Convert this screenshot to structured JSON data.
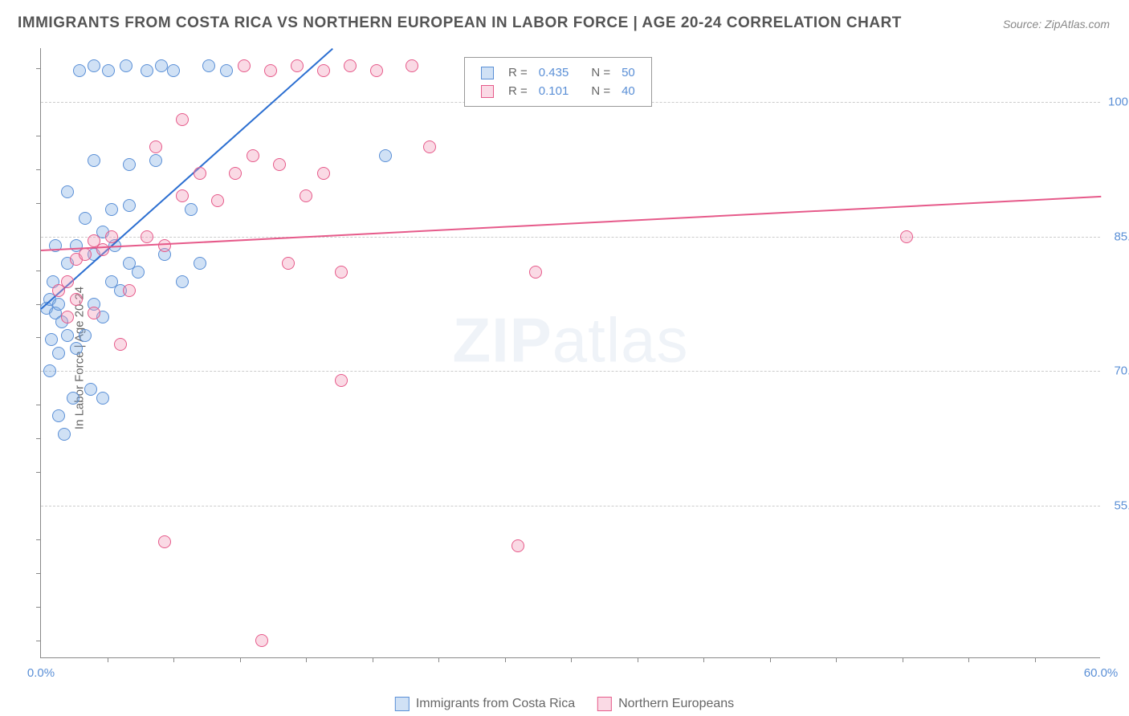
{
  "title": "IMMIGRANTS FROM COSTA RICA VS NORTHERN EUROPEAN IN LABOR FORCE | AGE 20-24 CORRELATION CHART",
  "source": "Source: ZipAtlas.com",
  "ylabel": "In Labor Force | Age 20-24",
  "watermark_a": "ZIP",
  "watermark_b": "atlas",
  "chart": {
    "type": "scatter",
    "xlim": [
      0,
      60
    ],
    "ylim": [
      38,
      106
    ],
    "x_ticks": [
      0,
      60
    ],
    "x_tick_labels": [
      "0.0%",
      "60.0%"
    ],
    "x_minor_ticks": [
      3.75,
      7.5,
      11.25,
      15,
      18.75,
      22.5,
      26.25,
      30,
      33.75,
      37.5,
      41.25,
      45,
      48.75,
      52.5,
      56.25
    ],
    "y_ticks": [
      55,
      70,
      85,
      100
    ],
    "y_tick_labels": [
      "55.0%",
      "70.0%",
      "85.0%",
      "100.0%"
    ],
    "y_minor_ticks": [
      40,
      43.75,
      47.5,
      51.25,
      58.75,
      62.5,
      66.25,
      73.75,
      77.5,
      81.25,
      88.75,
      92.5,
      96.25,
      103.75
    ],
    "grid_color": "#cccccc",
    "axis_color": "#888888",
    "background": "#ffffff",
    "series": [
      {
        "name": "Immigrants from Costa Rica",
        "marker_fill": "rgba(120,170,225,0.35)",
        "marker_stroke": "#5a8fd6",
        "line_color": "#2c6fd1",
        "r": 0.435,
        "n": 50,
        "trend": {
          "x1": 0,
          "y1": 77,
          "x2": 16.5,
          "y2": 106
        },
        "points": [
          [
            0.3,
            77
          ],
          [
            0.5,
            78
          ],
          [
            0.8,
            76.5
          ],
          [
            1.0,
            77.5
          ],
          [
            1.2,
            75.5
          ],
          [
            0.6,
            73.5
          ],
          [
            1.5,
            74
          ],
          [
            1.0,
            72
          ],
          [
            0.5,
            70
          ],
          [
            1.8,
            67
          ],
          [
            2.8,
            68
          ],
          [
            3.5,
            67
          ],
          [
            2.0,
            72.5
          ],
          [
            2.5,
            74
          ],
          [
            3.0,
            77.5
          ],
          [
            3.5,
            76
          ],
          [
            4.0,
            80
          ],
          [
            4.5,
            79
          ],
          [
            5.0,
            82
          ],
          [
            5.5,
            81
          ],
          [
            0.7,
            80
          ],
          [
            1.5,
            82
          ],
          [
            2.0,
            84
          ],
          [
            3.0,
            83
          ],
          [
            3.5,
            85.5
          ],
          [
            4.0,
            88
          ],
          [
            5.0,
            88.5
          ],
          [
            1.5,
            90
          ],
          [
            3.0,
            93.5
          ],
          [
            5.0,
            93
          ],
          [
            7.0,
            83
          ],
          [
            8.0,
            80
          ],
          [
            9.0,
            82
          ],
          [
            2.2,
            103.5
          ],
          [
            3.0,
            104
          ],
          [
            3.8,
            103.5
          ],
          [
            4.8,
            104
          ],
          [
            6.0,
            103.5
          ],
          [
            6.8,
            104
          ],
          [
            7.5,
            103.5
          ],
          [
            9.5,
            104
          ],
          [
            10.5,
            103.5
          ],
          [
            1.0,
            65
          ],
          [
            1.3,
            63
          ],
          [
            0.8,
            84
          ],
          [
            2.5,
            87
          ],
          [
            4.2,
            84
          ],
          [
            6.5,
            93.5
          ],
          [
            8.5,
            88
          ],
          [
            19.5,
            94
          ]
        ]
      },
      {
        "name": "Northern Europeans",
        "marker_fill": "rgba(240,150,180,0.35)",
        "marker_stroke": "#e65a8a",
        "line_color": "#e65a8a",
        "r": 0.101,
        "n": 40,
        "trend": {
          "x1": 0,
          "y1": 83.5,
          "x2": 60,
          "y2": 89.5
        },
        "points": [
          [
            1.0,
            79
          ],
          [
            1.5,
            80
          ],
          [
            2.0,
            82.5
          ],
          [
            2.5,
            83
          ],
          [
            3.0,
            84.5
          ],
          [
            3.5,
            83.5
          ],
          [
            4.0,
            85
          ],
          [
            5.0,
            79
          ],
          [
            6.0,
            85
          ],
          [
            7.0,
            84
          ],
          [
            8.0,
            89.5
          ],
          [
            9.0,
            92
          ],
          [
            10.0,
            89
          ],
          [
            11.0,
            92
          ],
          [
            12.0,
            94
          ],
          [
            13.5,
            93
          ],
          [
            15.0,
            89.5
          ],
          [
            16.0,
            92
          ],
          [
            11.5,
            104
          ],
          [
            13.0,
            103.5
          ],
          [
            14.5,
            104
          ],
          [
            16.0,
            103.5
          ],
          [
            17.5,
            104
          ],
          [
            19.0,
            103.5
          ],
          [
            21.0,
            104
          ],
          [
            8.0,
            98
          ],
          [
            6.5,
            95
          ],
          [
            14.0,
            82
          ],
          [
            17.0,
            81
          ],
          [
            28.0,
            81
          ],
          [
            22.0,
            95
          ],
          [
            17.0,
            69
          ],
          [
            7.0,
            51
          ],
          [
            27.0,
            50.5
          ],
          [
            12.5,
            40
          ],
          [
            49.0,
            85
          ],
          [
            1.5,
            76
          ],
          [
            3.0,
            76.5
          ],
          [
            4.5,
            73
          ],
          [
            2.0,
            78
          ]
        ]
      }
    ]
  },
  "legend_top": {
    "col_r": "R =",
    "col_n": "N ="
  },
  "legend_bottom_labels": [
    "Immigrants from Costa Rica",
    "Northern Europeans"
  ]
}
